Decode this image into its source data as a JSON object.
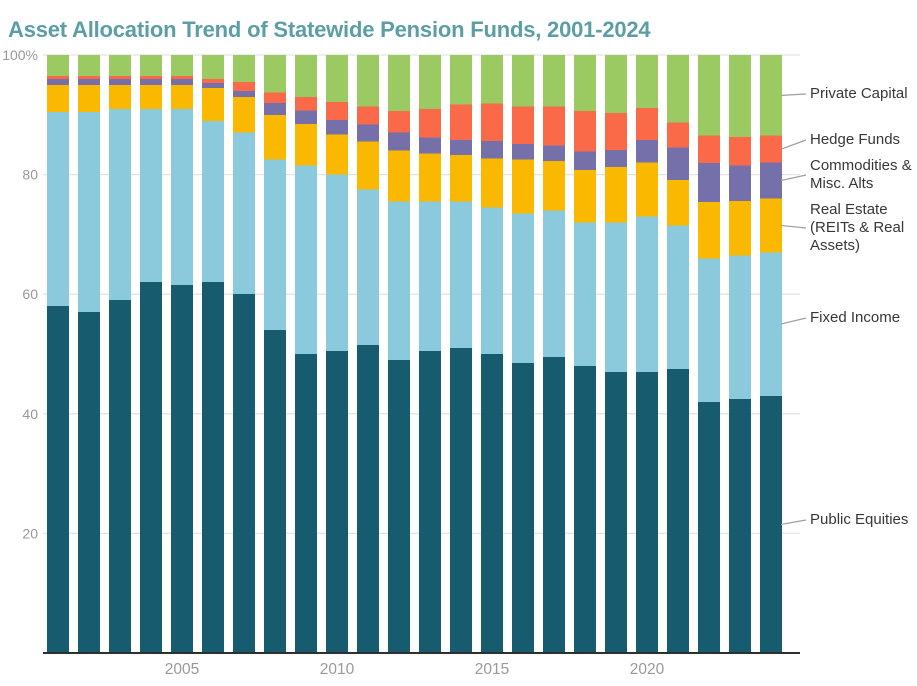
{
  "title_color": "#5c9ea6",
  "chart_data": {
    "type": "bar",
    "stacked": true,
    "title": "Asset Allocation Trend of Statewide Pension Funds, 2001-2024",
    "xlabel": "",
    "ylabel": "",
    "x": [
      2001,
      2002,
      2003,
      2004,
      2005,
      2006,
      2007,
      2008,
      2009,
      2010,
      2011,
      2012,
      2013,
      2014,
      2015,
      2016,
      2017,
      2018,
      2019,
      2020,
      2021,
      2022,
      2023,
      2024
    ],
    "x_tick_labels": [
      "2005",
      "2010",
      "2015",
      "2020"
    ],
    "x_tick_values": [
      2005,
      2010,
      2015,
      2020
    ],
    "y_tick_labels": [
      "100%",
      "80",
      "60",
      "40",
      "20"
    ],
    "y_tick_values": [
      100,
      80,
      60,
      40,
      20
    ],
    "ylim": [
      0,
      100
    ],
    "y_unit": "percent",
    "grid": true,
    "legend_position": "right-direct-labels",
    "series": [
      {
        "name": "Public Equities",
        "color": "#175b6f",
        "values": [
          58,
          57,
          59,
          62,
          61.5,
          62,
          60,
          54,
          50,
          50.5,
          51.5,
          49,
          50.5,
          51,
          50,
          48.5,
          49.5,
          48,
          47,
          47,
          47.5,
          42,
          42.5,
          43
        ]
      },
      {
        "name": "Fixed Income",
        "color": "#8bcadc",
        "values": [
          32.5,
          33.5,
          32,
          29,
          29.5,
          27,
          27,
          28.5,
          31.5,
          29.5,
          26,
          26.5,
          25,
          24.5,
          24.5,
          25,
          24.5,
          24,
          25,
          26,
          24,
          24,
          24,
          24
        ]
      },
      {
        "name": "Real Estate (REITs & Real Assets)",
        "color": "#fab800",
        "values": [
          4.5,
          4.5,
          4,
          4,
          4,
          5.5,
          6,
          7.5,
          7,
          6.7,
          8,
          8.5,
          8,
          7.8,
          8.2,
          9,
          8.3,
          8.8,
          9.3,
          9,
          7.6,
          9.4,
          9.1,
          9
        ]
      },
      {
        "name": "Commodities & Misc. Alts",
        "color": "#7570a9",
        "values": [
          1,
          1,
          1,
          1,
          1,
          0.8,
          1,
          2,
          2.2,
          2.4,
          2.9,
          3,
          2.7,
          2.5,
          2.9,
          2.6,
          2.6,
          3.1,
          2.8,
          3.8,
          5.4,
          6.5,
          5.9,
          6
        ]
      },
      {
        "name": "Hedge Funds",
        "color": "#fa6a49",
        "values": [
          0.5,
          0.5,
          0.5,
          0.5,
          0.5,
          0.7,
          1.5,
          1.7,
          2.3,
          3,
          3,
          3.6,
          4.8,
          5.9,
          6.3,
          6.3,
          6.5,
          6.7,
          6.2,
          5.3,
          4.2,
          4.6,
          4.8,
          4.5
        ]
      },
      {
        "name": "Private Capital",
        "color": "#9aca61",
        "values": [
          3.5,
          3.5,
          3.5,
          3.5,
          3.5,
          4,
          4.5,
          6.3,
          7,
          7.9,
          8.6,
          9.4,
          9,
          8.3,
          8.1,
          8.6,
          8.6,
          9.4,
          9.7,
          8.9,
          11.3,
          13.5,
          13.7,
          13.5
        ]
      }
    ],
    "colors": {
      "grid": "#e3e3e3",
      "axis": "#2f2f2f",
      "tick_text": "#999999",
      "leader_line": "#9e9e9e"
    }
  }
}
